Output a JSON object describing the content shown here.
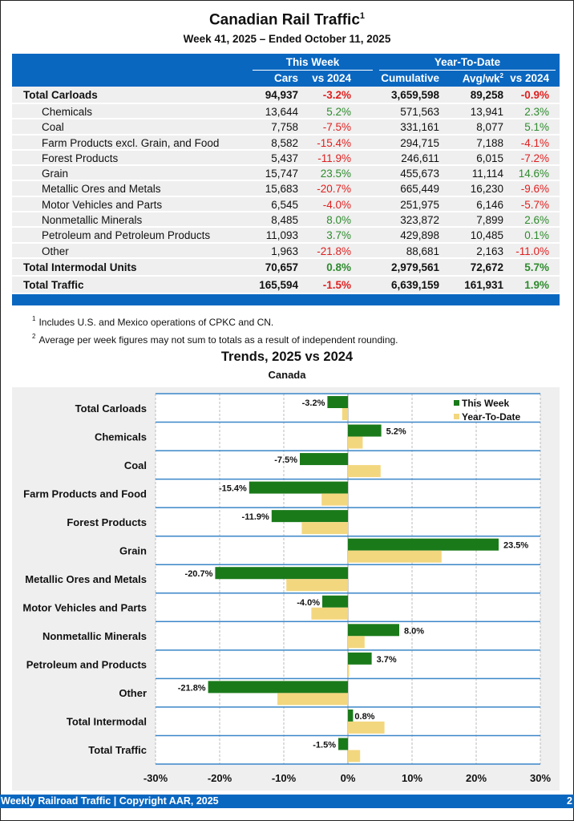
{
  "header": {
    "title": "Canadian Rail Traffic",
    "title_footnote": "1",
    "subtitle": "Week 41, 2025 – Ended October 11, 2025"
  },
  "table": {
    "groups": {
      "this_week": "This Week",
      "ytd": "Year-To-Date"
    },
    "columns": {
      "cars": "Cars",
      "tw_vs": "vs 2024",
      "cumulative": "Cumulative",
      "avgwk": "Avg/wk",
      "avgwk_footnote": "2",
      "ytd_vs": "vs 2024"
    },
    "rows": [
      {
        "name": "Total Carloads",
        "type": "total",
        "cars": "94,937",
        "tw_vs": "-3.2%",
        "cumulative": "3,659,598",
        "avgwk": "89,258",
        "ytd_vs": "-0.9%"
      },
      {
        "name": "Chemicals",
        "type": "sub",
        "cars": "13,644",
        "tw_vs": "5.2%",
        "cumulative": "571,563",
        "avgwk": "13,941",
        "ytd_vs": "2.3%"
      },
      {
        "name": "Coal",
        "type": "sub",
        "cars": "7,758",
        "tw_vs": "-7.5%",
        "cumulative": "331,161",
        "avgwk": "8,077",
        "ytd_vs": "5.1%"
      },
      {
        "name": "Farm Products excl. Grain, and Food",
        "type": "sub",
        "cars": "8,582",
        "tw_vs": "-15.4%",
        "cumulative": "294,715",
        "avgwk": "7,188",
        "ytd_vs": "-4.1%"
      },
      {
        "name": "Forest Products",
        "type": "sub",
        "cars": "5,437",
        "tw_vs": "-11.9%",
        "cumulative": "246,611",
        "avgwk": "6,015",
        "ytd_vs": "-7.2%"
      },
      {
        "name": "Grain",
        "type": "sub",
        "cars": "15,747",
        "tw_vs": "23.5%",
        "cumulative": "455,673",
        "avgwk": "11,114",
        "ytd_vs": "14.6%"
      },
      {
        "name": "Metallic Ores and Metals",
        "type": "sub",
        "cars": "15,683",
        "tw_vs": "-20.7%",
        "cumulative": "665,449",
        "avgwk": "16,230",
        "ytd_vs": "-9.6%"
      },
      {
        "name": "Motor Vehicles and Parts",
        "type": "sub",
        "cars": "6,545",
        "tw_vs": "-4.0%",
        "cumulative": "251,975",
        "avgwk": "6,146",
        "ytd_vs": "-5.7%"
      },
      {
        "name": "Nonmetallic Minerals",
        "type": "sub",
        "cars": "8,485",
        "tw_vs": "8.0%",
        "cumulative": "323,872",
        "avgwk": "7,899",
        "ytd_vs": "2.6%"
      },
      {
        "name": "Petroleum and Petroleum Products",
        "type": "sub",
        "cars": "11,093",
        "tw_vs": "3.7%",
        "cumulative": "429,898",
        "avgwk": "10,485",
        "ytd_vs": "0.1%"
      },
      {
        "name": "Other",
        "type": "sub",
        "cars": "1,963",
        "tw_vs": "-21.8%",
        "cumulative": "88,681",
        "avgwk": "2,163",
        "ytd_vs": "-11.0%"
      },
      {
        "name": "Total Intermodal Units",
        "type": "total",
        "cars": "70,657",
        "tw_vs": "0.8%",
        "cumulative": "2,979,561",
        "avgwk": "72,672",
        "ytd_vs": "5.7%"
      },
      {
        "name": "Total Traffic",
        "type": "total",
        "cars": "165,594",
        "tw_vs": "-1.5%",
        "cumulative": "6,639,159",
        "avgwk": "161,931",
        "ytd_vs": "1.9%"
      }
    ]
  },
  "footnotes": [
    {
      "mark": "1",
      "text": "Includes U.S. and Mexico operations of CPKC and CN."
    },
    {
      "mark": "2",
      "text": "Average per week figures may not sum to totals as a result of independent rounding."
    }
  ],
  "colors": {
    "brand_blue": "#0a67c0",
    "positive": "#2e8b2e",
    "negative": "#e02020",
    "this_week_bar": "#1a7a1a",
    "ytd_bar": "#f3d77f"
  },
  "chart_data": {
    "type": "bar",
    "orientation": "horizontal",
    "title": "Trends, 2025 vs 2024",
    "subtitle": "Canada",
    "xlabel": "",
    "ylabel": "",
    "xlim": [
      -30,
      30
    ],
    "xticks": [
      -30,
      -20,
      -10,
      0,
      10,
      20,
      30
    ],
    "xtick_labels": [
      "-30%",
      "-20%",
      "-10%",
      "0%",
      "10%",
      "20%",
      "30%"
    ],
    "grid": "vertical dashed",
    "legend_position": "top-right",
    "categories": [
      "Total Carloads",
      "Chemicals",
      "Coal",
      "Farm Products and Food",
      "Forest Products",
      "Grain",
      "Metallic Ores and Metals",
      "Motor Vehicles and Parts",
      "Nonmetallic Minerals",
      "Petroleum and Products",
      "Other",
      "Total Intermodal",
      "Total Traffic"
    ],
    "series": [
      {
        "name": "This Week",
        "values": [
          -3.2,
          5.2,
          -7.5,
          -15.4,
          -11.9,
          23.5,
          -20.7,
          -4.0,
          8.0,
          3.7,
          -21.8,
          0.8,
          -1.5
        ],
        "labels": [
          "-3.2%",
          "5.2%",
          "-7.5%",
          "-15.4%",
          "-11.9%",
          "23.5%",
          "-20.7%",
          "-4.0%",
          "8.0%",
          "3.7%",
          "-21.8%",
          "0.8%",
          "-1.5%"
        ]
      },
      {
        "name": "Year-To-Date",
        "values": [
          -0.9,
          2.3,
          5.1,
          -4.1,
          -7.2,
          14.6,
          -9.6,
          -5.7,
          2.6,
          0.1,
          -11.0,
          5.7,
          1.9
        ]
      }
    ]
  },
  "footer": {
    "left": "Weekly Railroad Traffic | Copyright AAR, 2025",
    "page_number": "2"
  }
}
